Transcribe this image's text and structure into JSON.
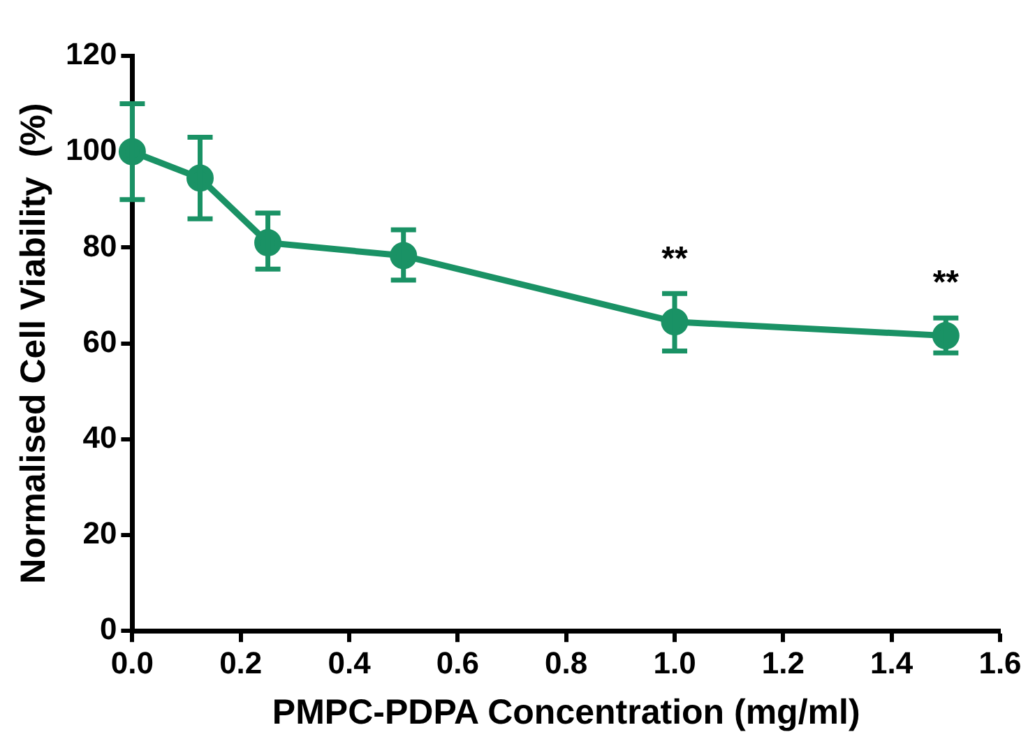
{
  "chart_data": {
    "type": "line",
    "xlabel": "PMPC-PDPA Concentration (mg/ml)",
    "ylabel": "Normalised Cell Viability  (%)",
    "x": [
      0,
      0.125,
      0.25,
      0.5,
      1.0,
      1.5
    ],
    "values": [
      100,
      94.5,
      81,
      78.3,
      64.5,
      61.6
    ],
    "errors": [
      [
        90,
        110
      ],
      [
        86,
        103
      ],
      [
        75.5,
        87.2
      ],
      [
        73.2,
        83.7
      ],
      [
        58.4,
        70.4
      ],
      [
        58,
        65.3
      ]
    ],
    "color": "#1a9265",
    "marker": "circle",
    "line_style": "solid",
    "xlim": [
      0,
      1.6
    ],
    "xticks": [
      {
        "value": 0,
        "label": "0.0"
      },
      {
        "value": 0.2,
        "label": "0.2"
      },
      {
        "value": 0.4,
        "label": "0.4"
      },
      {
        "value": 0.6,
        "label": "0.6"
      },
      {
        "value": 0.8,
        "label": "0.8"
      },
      {
        "value": 1.0,
        "label": "1.0"
      },
      {
        "value": 1.2,
        "label": "1.2"
      },
      {
        "value": 1.4,
        "label": "1.4"
      },
      {
        "value": 1.6,
        "label": "1.6"
      }
    ],
    "ylim": [
      0,
      120
    ],
    "yticks": [
      0,
      20,
      40,
      60,
      80,
      100,
      120
    ],
    "annotations": [
      {
        "text": "**",
        "x": 1.0,
        "y": 70.4
      },
      {
        "text": "**",
        "x": 1.5,
        "y": 65.3
      }
    ],
    "grid": false,
    "legend": false
  }
}
